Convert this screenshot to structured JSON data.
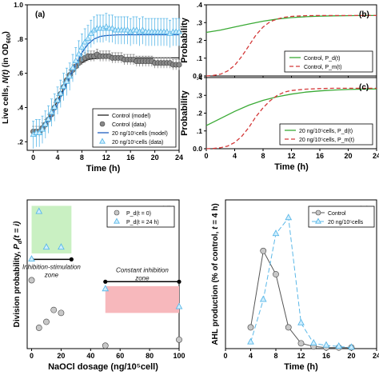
{
  "chart_data": [
    {
      "id": "a",
      "type": "line",
      "panel_label": "(a)",
      "xlabel": "Time (h)",
      "ylabel_parts": [
        "Live cells, ",
        "N(t)",
        " (in OD",
        "600",
        ")"
      ],
      "xlim": [
        -1,
        24
      ],
      "ylim": [
        0.15,
        1.0
      ],
      "xticks": [
        0,
        4,
        8,
        12,
        16,
        20,
        24
      ],
      "yticks": [
        0.2,
        0.4,
        0.6,
        0.8,
        1.0
      ],
      "ytick_labels": [
        ".2",
        ".4",
        ".6",
        ".8",
        "1.0"
      ],
      "legend_position": "bottom-right",
      "legend": [
        "Control (model)",
        "Control (data)",
        "20 ng/10⁵cells (model)",
        "20 ng/10⁵cells (data)"
      ],
      "series": [
        {
          "name": "Control (model)",
          "kind": "model",
          "color": "#222222",
          "x": [
            0,
            1,
            2,
            3,
            4,
            5,
            6,
            7,
            8,
            9,
            10,
            12,
            14,
            16,
            18,
            20,
            22,
            24
          ],
          "y": [
            0.25,
            0.27,
            0.31,
            0.37,
            0.44,
            0.51,
            0.58,
            0.63,
            0.66,
            0.68,
            0.685,
            0.69,
            0.69,
            0.69,
            0.69,
            0.69,
            0.69,
            0.69
          ]
        },
        {
          "name": "Control (data)",
          "kind": "data",
          "marker": "circle",
          "color": "#888888",
          "x": [
            0,
            0.5,
            1,
            1.5,
            2,
            2.5,
            3,
            3.5,
            4,
            4.5,
            5,
            5.5,
            6,
            6.5,
            7,
            7.5,
            8,
            8.5,
            9,
            9.5,
            10,
            10.5,
            11,
            11.5,
            12,
            12.5,
            13,
            13.5,
            14,
            14.5,
            15,
            15.5,
            16,
            16.5,
            17,
            17.5,
            18,
            18.5,
            19,
            19.5,
            20,
            20.5,
            21,
            21.5,
            22,
            22.5,
            23,
            23.5,
            24
          ],
          "y": [
            0.26,
            0.26,
            0.26,
            0.28,
            0.3,
            0.33,
            0.36,
            0.4,
            0.44,
            0.48,
            0.52,
            0.56,
            0.59,
            0.62,
            0.64,
            0.66,
            0.68,
            0.69,
            0.7,
            0.7,
            0.7,
            0.71,
            0.7,
            0.7,
            0.7,
            0.7,
            0.69,
            0.69,
            0.69,
            0.69,
            0.68,
            0.68,
            0.68,
            0.68,
            0.67,
            0.67,
            0.67,
            0.67,
            0.67,
            0.67,
            0.66,
            0.66,
            0.66,
            0.66,
            0.66,
            0.66,
            0.65,
            0.65,
            0.65
          ],
          "err": 0.03
        },
        {
          "name": "20 ng/10⁵cells (model)",
          "kind": "model",
          "color": "#1f5fbf",
          "x": [
            0,
            1,
            2,
            3,
            4,
            5,
            6,
            7,
            8,
            9,
            10,
            11,
            12,
            14,
            16,
            18,
            20,
            22,
            24
          ],
          "y": [
            0.24,
            0.26,
            0.3,
            0.35,
            0.42,
            0.5,
            0.58,
            0.65,
            0.72,
            0.77,
            0.8,
            0.815,
            0.82,
            0.825,
            0.825,
            0.825,
            0.825,
            0.825,
            0.825
          ]
        },
        {
          "name": "20 ng/10⁵cells (data)",
          "kind": "data",
          "marker": "triangle",
          "color": "#5bb8e8",
          "x": [
            0,
            0.5,
            1,
            1.5,
            2,
            2.5,
            3,
            3.5,
            4,
            4.5,
            5,
            5.5,
            6,
            6.5,
            7,
            7.5,
            8,
            8.5,
            9,
            9.5,
            10,
            10.5,
            11,
            11.5,
            12,
            12.5,
            13,
            13.5,
            14,
            14.5,
            15,
            15.5,
            16,
            16.5,
            17,
            17.5,
            18,
            18.5,
            19,
            19.5,
            20,
            20.5,
            21,
            21.5,
            22,
            22.5,
            23,
            23.5,
            24
          ],
          "y": [
            0.24,
            0.25,
            0.25,
            0.27,
            0.3,
            0.33,
            0.37,
            0.4,
            0.44,
            0.48,
            0.52,
            0.55,
            0.58,
            0.63,
            0.67,
            0.71,
            0.75,
            0.78,
            0.8,
            0.83,
            0.85,
            0.86,
            0.86,
            0.86,
            0.87,
            0.86,
            0.86,
            0.85,
            0.85,
            0.85,
            0.85,
            0.85,
            0.84,
            0.85,
            0.85,
            0.84,
            0.85,
            0.84,
            0.84,
            0.84,
            0.84,
            0.84,
            0.84,
            0.84,
            0.84,
            0.83,
            0.84,
            0.84,
            0.84
          ],
          "err": 0.08
        }
      ]
    },
    {
      "id": "b",
      "type": "line",
      "panel_label": "(b)",
      "xlabel": "",
      "ylabel": "Probability",
      "xlim": [
        0,
        24
      ],
      "ylim": [
        0,
        0.4
      ],
      "xticks": [
        0,
        4,
        8,
        12,
        16,
        20,
        24
      ],
      "show_xtick_labels": false,
      "yticks": [
        0,
        0.1,
        0.2,
        0.3,
        0.4
      ],
      "ytick_labels": [
        "0.0",
        ".1",
        ".2",
        ".3",
        ".4"
      ],
      "legend_position": "bottom-right",
      "legend": [
        "Control, P_d(t)",
        "Control, P_m(t)"
      ],
      "series": [
        {
          "name": "Control, P_d(t)",
          "color": "#3aaa35",
          "dash": "",
          "x": [
            0,
            2,
            4,
            6,
            8,
            10,
            12,
            14,
            16,
            18,
            20,
            22,
            24
          ],
          "y": [
            0.245,
            0.258,
            0.275,
            0.292,
            0.308,
            0.32,
            0.328,
            0.333,
            0.336,
            0.338,
            0.339,
            0.34,
            0.34
          ]
        },
        {
          "name": "Control, P_m(t)",
          "color": "#d43a3a",
          "dash": "5,3",
          "x": [
            0,
            1,
            2,
            3,
            4,
            5,
            6,
            7,
            8,
            9,
            10,
            11,
            12,
            14,
            16,
            18,
            20,
            22,
            24
          ],
          "y": [
            0.0,
            0.003,
            0.01,
            0.028,
            0.06,
            0.11,
            0.17,
            0.23,
            0.275,
            0.305,
            0.32,
            0.33,
            0.335,
            0.339,
            0.34,
            0.34,
            0.34,
            0.34,
            0.34
          ]
        }
      ]
    },
    {
      "id": "c",
      "type": "line",
      "panel_label": "(c)",
      "xlabel": "Time (h)",
      "ylabel": "Probability",
      "xlim": [
        0,
        24
      ],
      "ylim": [
        0,
        0.4
      ],
      "xticks": [
        0,
        4,
        8,
        12,
        16,
        20,
        24
      ],
      "yticks": [
        0,
        0.1,
        0.2,
        0.3,
        0.4
      ],
      "ytick_labels": [
        "0.0",
        ".1",
        ".2",
        ".3",
        ".4"
      ],
      "legend_position": "bottom-right",
      "legend": [
        "20 ng/10⁵cells, P_d(t)",
        "20 ng/10⁵cells, P_m(t)"
      ],
      "series": [
        {
          "name": "20 ng/10⁵cells, P_d(t)",
          "color": "#3aaa35",
          "dash": "",
          "x": [
            0,
            2,
            4,
            6,
            8,
            10,
            12,
            14,
            16,
            18,
            20,
            22,
            24
          ],
          "y": [
            0.13,
            0.17,
            0.21,
            0.245,
            0.272,
            0.292,
            0.307,
            0.318,
            0.325,
            0.33,
            0.333,
            0.335,
            0.336
          ]
        },
        {
          "name": "20 ng/10⁵cells, P_m(t)",
          "color": "#d43a3a",
          "dash": "5,3",
          "x": [
            0,
            1,
            2,
            3,
            4,
            5,
            6,
            7,
            8,
            9,
            10,
            11,
            12,
            14,
            16,
            18,
            20,
            22,
            24
          ],
          "y": [
            0.0,
            0.002,
            0.006,
            0.015,
            0.035,
            0.07,
            0.12,
            0.18,
            0.23,
            0.27,
            0.3,
            0.318,
            0.327,
            0.335,
            0.338,
            0.34,
            0.34,
            0.34,
            0.34
          ]
        }
      ]
    },
    {
      "id": "d",
      "type": "scatter",
      "panel_label": "(d)",
      "xlabel": "NaOCl dosage (ng/10⁵cell)",
      "ylabel_parts": [
        "Division probability, ",
        "P",
        "d",
        "(t = i)"
      ],
      "xlim": [
        -3,
        100
      ],
      "ylim": [
        0,
        0.5
      ],
      "xticks": [
        0,
        20,
        40,
        60,
        80,
        100
      ],
      "show_yticks": false,
      "legend_position": "top-right",
      "legend": [
        "P_d(t = 0)",
        "P_d(t = 24 h)"
      ],
      "series": [
        {
          "name": "P_d(t = 0)",
          "marker": "circle",
          "color": "#999999",
          "x": [
            0,
            5,
            10,
            15,
            20,
            50,
            100
          ],
          "y": [
            0.23,
            0.07,
            0.09,
            0.13,
            0.12,
            0.01,
            0.03
          ]
        },
        {
          "name": "P_d(t = 24 h)",
          "marker": "triangle",
          "color": "#5bb8e8",
          "x": [
            0,
            5,
            10,
            20,
            50,
            100
          ],
          "y": [
            0.3,
            0.46,
            0.34,
            0.34,
            0.2,
            0.14
          ]
        }
      ],
      "zones": [
        {
          "label": "Inhibition-stimulation zone",
          "label_lines": [
            "Inhibition-stimulation",
            "zone"
          ],
          "color": "#c9f0c2",
          "x_range": [
            0,
            27
          ],
          "y_range": [
            0.32,
            0.48
          ],
          "arrow_x": [
            0,
            27
          ],
          "arrow_y": 0.3
        },
        {
          "label": "Constant inhibition zone",
          "label_lines": [
            "Constant inhibition",
            "zone"
          ],
          "color": "#f7b8bc",
          "x_range": [
            50,
            100
          ],
          "y_range": [
            0.12,
            0.21
          ],
          "arrow_x": [
            50,
            100
          ],
          "arrow_y": 0.225
        }
      ]
    },
    {
      "id": "e",
      "type": "line",
      "panel_label": "(e)",
      "xlabel": "Time (h)",
      "ylabel_parts": [
        "AHL production (% of control, ",
        "t",
        " = 4 h)"
      ],
      "xlim": [
        0,
        24
      ],
      "ylim": [
        0,
        700
      ],
      "xticks": [
        0,
        4,
        8,
        12,
        16,
        20,
        24
      ],
      "show_yticks": false,
      "legend_position": "top-right",
      "legend": [
        "Control",
        "20 ng/10⁵cells"
      ],
      "series": [
        {
          "name": "Control",
          "marker": "circle",
          "color": "#555555",
          "dash": "",
          "x": [
            4,
            6,
            8,
            10,
            12,
            14,
            16,
            18,
            20
          ],
          "y": [
            100,
            460,
            350,
            100,
            25,
            10,
            5,
            5,
            5
          ]
        },
        {
          "name": "20 ng/10⁵cells",
          "marker": "triangle",
          "color": "#5bb8e8",
          "dash": "6,3",
          "x": [
            4,
            6,
            8,
            10,
            12,
            14,
            16,
            18,
            20
          ],
          "y": [
            30,
            230,
            540,
            615,
            120,
            25,
            15,
            10,
            5
          ]
        }
      ]
    }
  ]
}
